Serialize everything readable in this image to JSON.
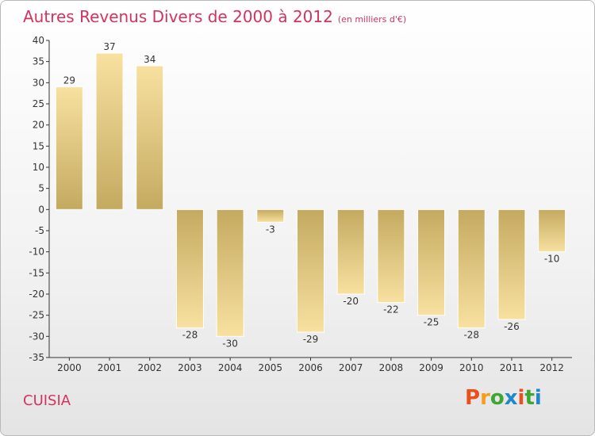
{
  "header": {
    "title": "Autres Revenus Divers de 2000 à 2012",
    "subtitle": "(en milliers d'€)"
  },
  "footer": {
    "place": "CUISIA",
    "logo": "Proxiti",
    "logo_colors": [
      "#e8501e",
      "#f59d1b",
      "#3fa535",
      "#1e88c8",
      "#e8501e",
      "#3fa535",
      "#1e88c8"
    ]
  },
  "chart_data": {
    "type": "bar",
    "title": "Autres Revenus Divers de 2000 à 2012",
    "categories": [
      "2000",
      "2001",
      "2002",
      "2003",
      "2004",
      "2005",
      "2006",
      "2007",
      "2008",
      "2009",
      "2010",
      "2011",
      "2012"
    ],
    "values": [
      29,
      37,
      34,
      -28,
      -30,
      -3,
      -29,
      -20,
      -22,
      -25,
      -28,
      -26,
      -10
    ],
    "ylim": [
      -35,
      40
    ],
    "yticks": [
      40,
      35,
      30,
      25,
      20,
      15,
      10,
      5,
      0,
      -5,
      -10,
      -15,
      -20,
      -25,
      -30,
      -35
    ],
    "grid": false,
    "colors": {
      "bar_light": "#f8e0a0",
      "bar_dark": "#c4aa60"
    }
  }
}
